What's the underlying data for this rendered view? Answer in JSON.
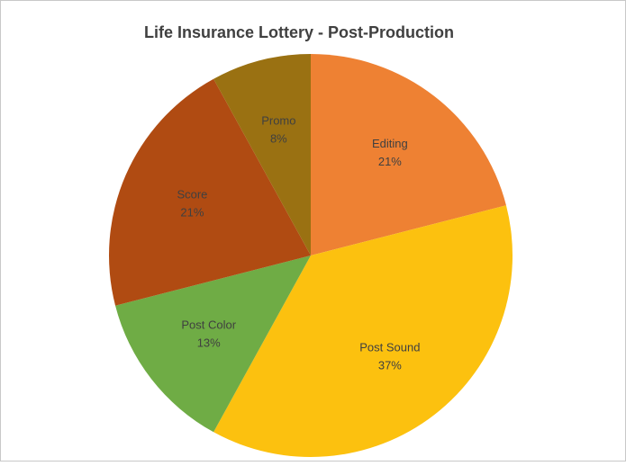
{
  "chart_data": {
    "type": "pie",
    "title": "Life Insurance  Lottery -  Post-Production",
    "categories": [
      "Editing",
      "Post Sound",
      "Post Color",
      "Score",
      "Promo"
    ],
    "values": [
      21,
      37,
      13,
      21,
      8
    ],
    "value_labels": [
      "21%",
      "37%",
      "13%",
      "21%",
      "8%"
    ],
    "colors": [
      "#ee8133",
      "#fcc10f",
      "#6fac45",
      "#b04b12",
      "#9a7112"
    ]
  }
}
